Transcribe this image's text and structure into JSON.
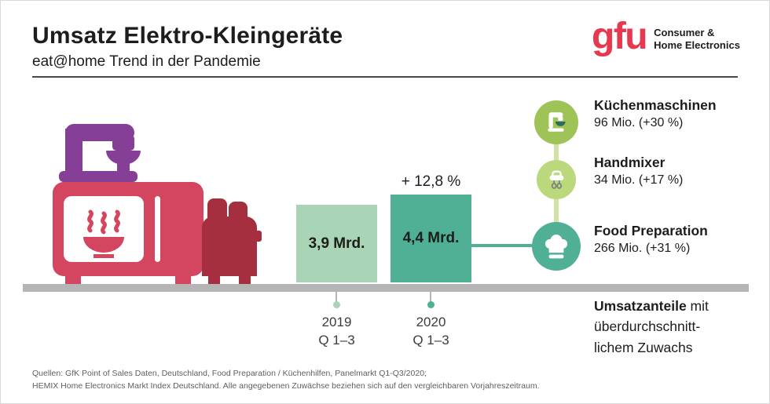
{
  "header": {
    "title": "Umsatz Elektro-Kleingeräte",
    "subtitle": "eat@home Trend in der Pandemie",
    "logo_text": "gfu",
    "logo_tagline_line1": "Consumer &",
    "logo_tagline_line2": "Home Electronics"
  },
  "chart_data": {
    "type": "bar",
    "title": "Umsatz Elektro-Kleingeräte",
    "subtitle": "eat@home Trend in der Pandemie",
    "unit": "Mrd.",
    "categories": [
      "2019 Q 1–3",
      "2020 Q 1–3"
    ],
    "values": [
      3.9,
      4.4
    ],
    "ylim": [
      0,
      4.9
    ],
    "grid": false,
    "growth_annotation": "+ 12,8 %",
    "bars": [
      {
        "year": "2019",
        "quarter": "Q 1–3",
        "value": 3.9,
        "value_label": "3,9 Mrd.",
        "color": "#a9d4b6"
      },
      {
        "year": "2020",
        "quarter": "Q 1–3",
        "value": 4.4,
        "value_label": "4,4 Mrd.",
        "color": "#4fb095"
      }
    ],
    "side_categories": [
      {
        "name": "Küchenmaschinen",
        "value": "96 Mio. (+30 %)",
        "icon": "stand-mixer-icon",
        "color": "#9fc356"
      },
      {
        "name": "Handmixer",
        "value": "34 Mio. (+17 %)",
        "icon": "hand-mixer-icon",
        "color": "#bcd87d"
      },
      {
        "name": "Food Preparation",
        "value": "266 Mio. (+31 %)",
        "icon": "chef-hat-icon",
        "color": "#4fb095"
      }
    ],
    "note": {
      "bold": "Umsatzanteile",
      "line1_rest": " mit",
      "line2": "überdurchschnitt-",
      "line3": "lichem Zuwachs"
    }
  },
  "footer": {
    "source_line1": "Quellen: GfK Point of Sales Daten, Deutschland, Food Preparation / Küchenhilfen, Panelmarkt Q1-Q3/2020;",
    "source_line2": "HEMIX Home Electronics Markt Index Deutschland. Alle angegebenen Zuwächse beziehen sich auf den vergleichbaren Vorjahreszeitraum."
  },
  "colors": {
    "brand_red": "#e6394f",
    "microwave_red": "#d4455f",
    "toaster_red": "#a52f3e",
    "mixer_purple": "#863f97",
    "bar_2019": "#a9d4b6",
    "bar_2020": "#4fb095",
    "connector_light_green": "#cfe3a3",
    "baseline_gray": "#b5b5b5"
  }
}
